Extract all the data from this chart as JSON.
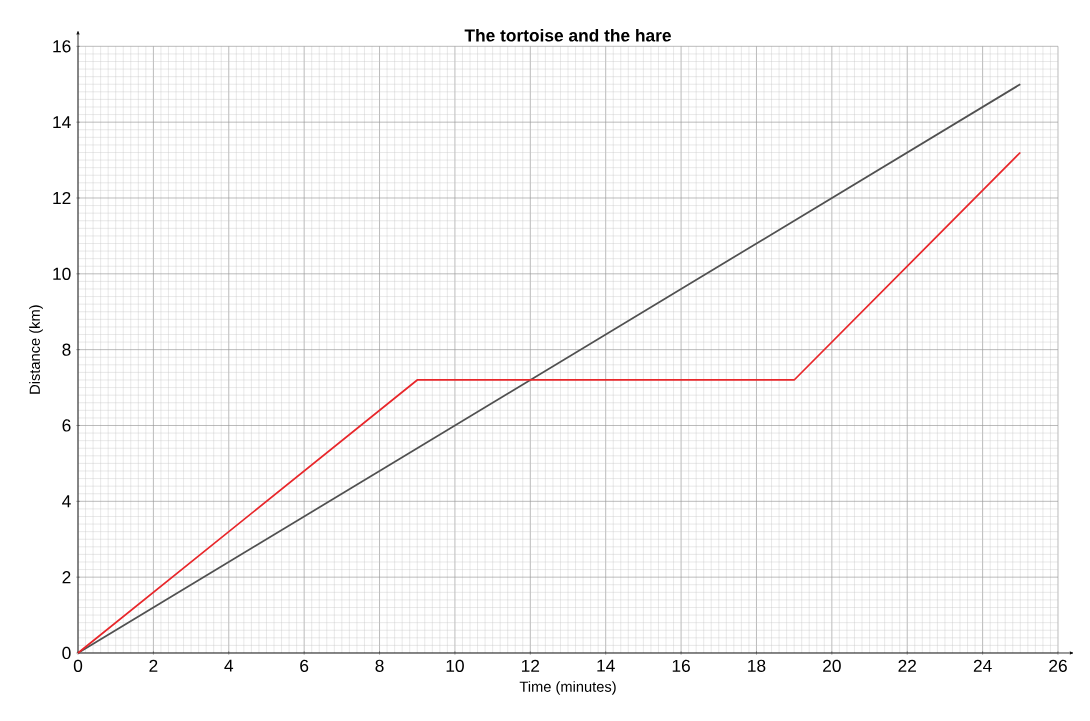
{
  "chart_data": {
    "type": "line",
    "title": "The tortoise and the hare",
    "xlabel": "Time (minutes)",
    "ylabel": "Distance (km)",
    "xlim": [
      0,
      26
    ],
    "ylim": [
      0,
      16
    ],
    "xticks": [
      0,
      2,
      4,
      6,
      8,
      10,
      12,
      14,
      16,
      18,
      20,
      22,
      24,
      26
    ],
    "yticks": [
      0,
      2,
      4,
      6,
      8,
      10,
      12,
      14,
      16
    ],
    "grid": true,
    "series": [
      {
        "color": "#505050",
        "x": [
          0,
          25
        ],
        "values": [
          0,
          15
        ]
      },
      {
        "color": "#e8262a",
        "x": [
          0,
          9,
          19,
          25
        ],
        "values": [
          0,
          7.2,
          7.2,
          13.2
        ]
      }
    ]
  }
}
